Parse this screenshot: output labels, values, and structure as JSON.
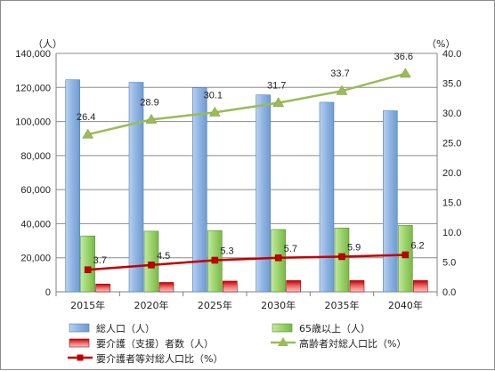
{
  "chart_data": {
    "type": "bar",
    "categories": [
      "2015年",
      "2020年",
      "2025年",
      "2030年",
      "2035年",
      "2040年"
    ],
    "y_left": {
      "unit_label": "（人）",
      "range": [
        0,
        140000
      ],
      "step": 20000,
      "tick_labels": [
        "0",
        "20,000",
        "40,000",
        "60,000",
        "80,000",
        "100,000",
        "120,000",
        "140,000"
      ]
    },
    "y_right": {
      "unit_label": "（%）",
      "range": [
        0,
        40
      ],
      "step": 5,
      "tick_labels": [
        "0.0",
        "5.0",
        "10.0",
        "15.0",
        "20.0",
        "25.0",
        "30.0",
        "35.0",
        "40.0"
      ]
    },
    "grid": true,
    "legend_position": "bottom",
    "series": [
      {
        "name": "総人口（人）",
        "type": "bar",
        "axis": "left",
        "color": "#8db3e2",
        "values": [
          124500,
          123000,
          119800,
          115600,
          111300,
          106300
        ]
      },
      {
        "name": "65歳以上（人）",
        "type": "bar",
        "axis": "left",
        "color": "#9bd36b",
        "values": [
          32800,
          35600,
          36000,
          36600,
          37500,
          39000
        ]
      },
      {
        "name": "要介護（支援）者数（人）",
        "type": "bar",
        "axis": "left",
        "color": "#e0303a",
        "values": [
          4600,
          5500,
          6300,
          6600,
          6600,
          6600
        ]
      },
      {
        "name": "高齢者対総人口比（%）",
        "type": "line",
        "axis": "right",
        "color": "#9bbb59",
        "marker": "triangle",
        "values": [
          26.4,
          28.9,
          30.1,
          31.7,
          33.7,
          36.6
        ],
        "data_labels": [
          "26.4",
          "28.9",
          "30.1",
          "31.7",
          "33.7",
          "36.6"
        ]
      },
      {
        "name": "要介護者等対総人口比（%）",
        "type": "line",
        "axis": "right",
        "color": "#c00000",
        "marker": "square",
        "values": [
          3.7,
          4.5,
          5.3,
          5.7,
          5.9,
          6.2
        ],
        "data_labels": [
          "3.7",
          "4.5",
          "5.3",
          "5.7",
          "5.9",
          "6.2"
        ]
      }
    ]
  }
}
